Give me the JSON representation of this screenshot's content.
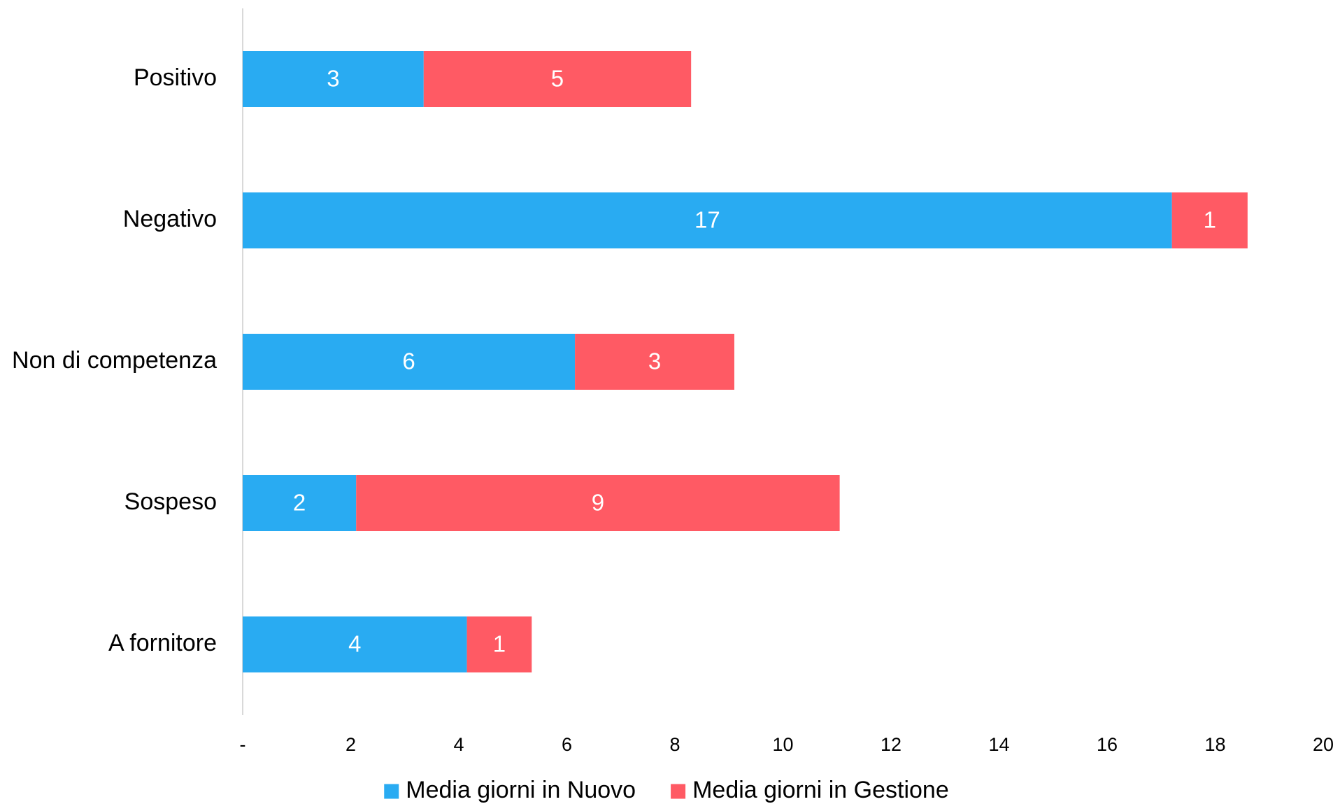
{
  "chart_data": {
    "type": "bar",
    "orientation": "horizontal",
    "stacked": true,
    "categories": [
      "Positivo",
      "Negativo",
      "Non di competenza",
      "Sospeso",
      "A fornitore"
    ],
    "series": [
      {
        "name": "Media giorni in Nuovo",
        "color": "#29ABF2",
        "values": [
          3.35,
          17.2,
          6.15,
          2.1,
          4.15
        ],
        "labels": [
          "3",
          "17",
          "6",
          "2",
          "4"
        ]
      },
      {
        "name": "Media giorni in Gestione",
        "color": "#FF5A64",
        "values": [
          4.95,
          1.4,
          2.95,
          8.95,
          1.2
        ],
        "labels": [
          "5",
          "1",
          "3",
          "9",
          "1"
        ]
      }
    ],
    "xlim": [
      0,
      20
    ],
    "xticks": [
      0,
      2,
      4,
      6,
      8,
      10,
      12,
      14,
      16,
      18,
      20
    ],
    "xtick_labels": [
      "-",
      "2",
      "4",
      "6",
      "8",
      "10",
      "12",
      "14",
      "16",
      "18",
      "20"
    ],
    "grid": false,
    "legend_position": "bottom"
  }
}
